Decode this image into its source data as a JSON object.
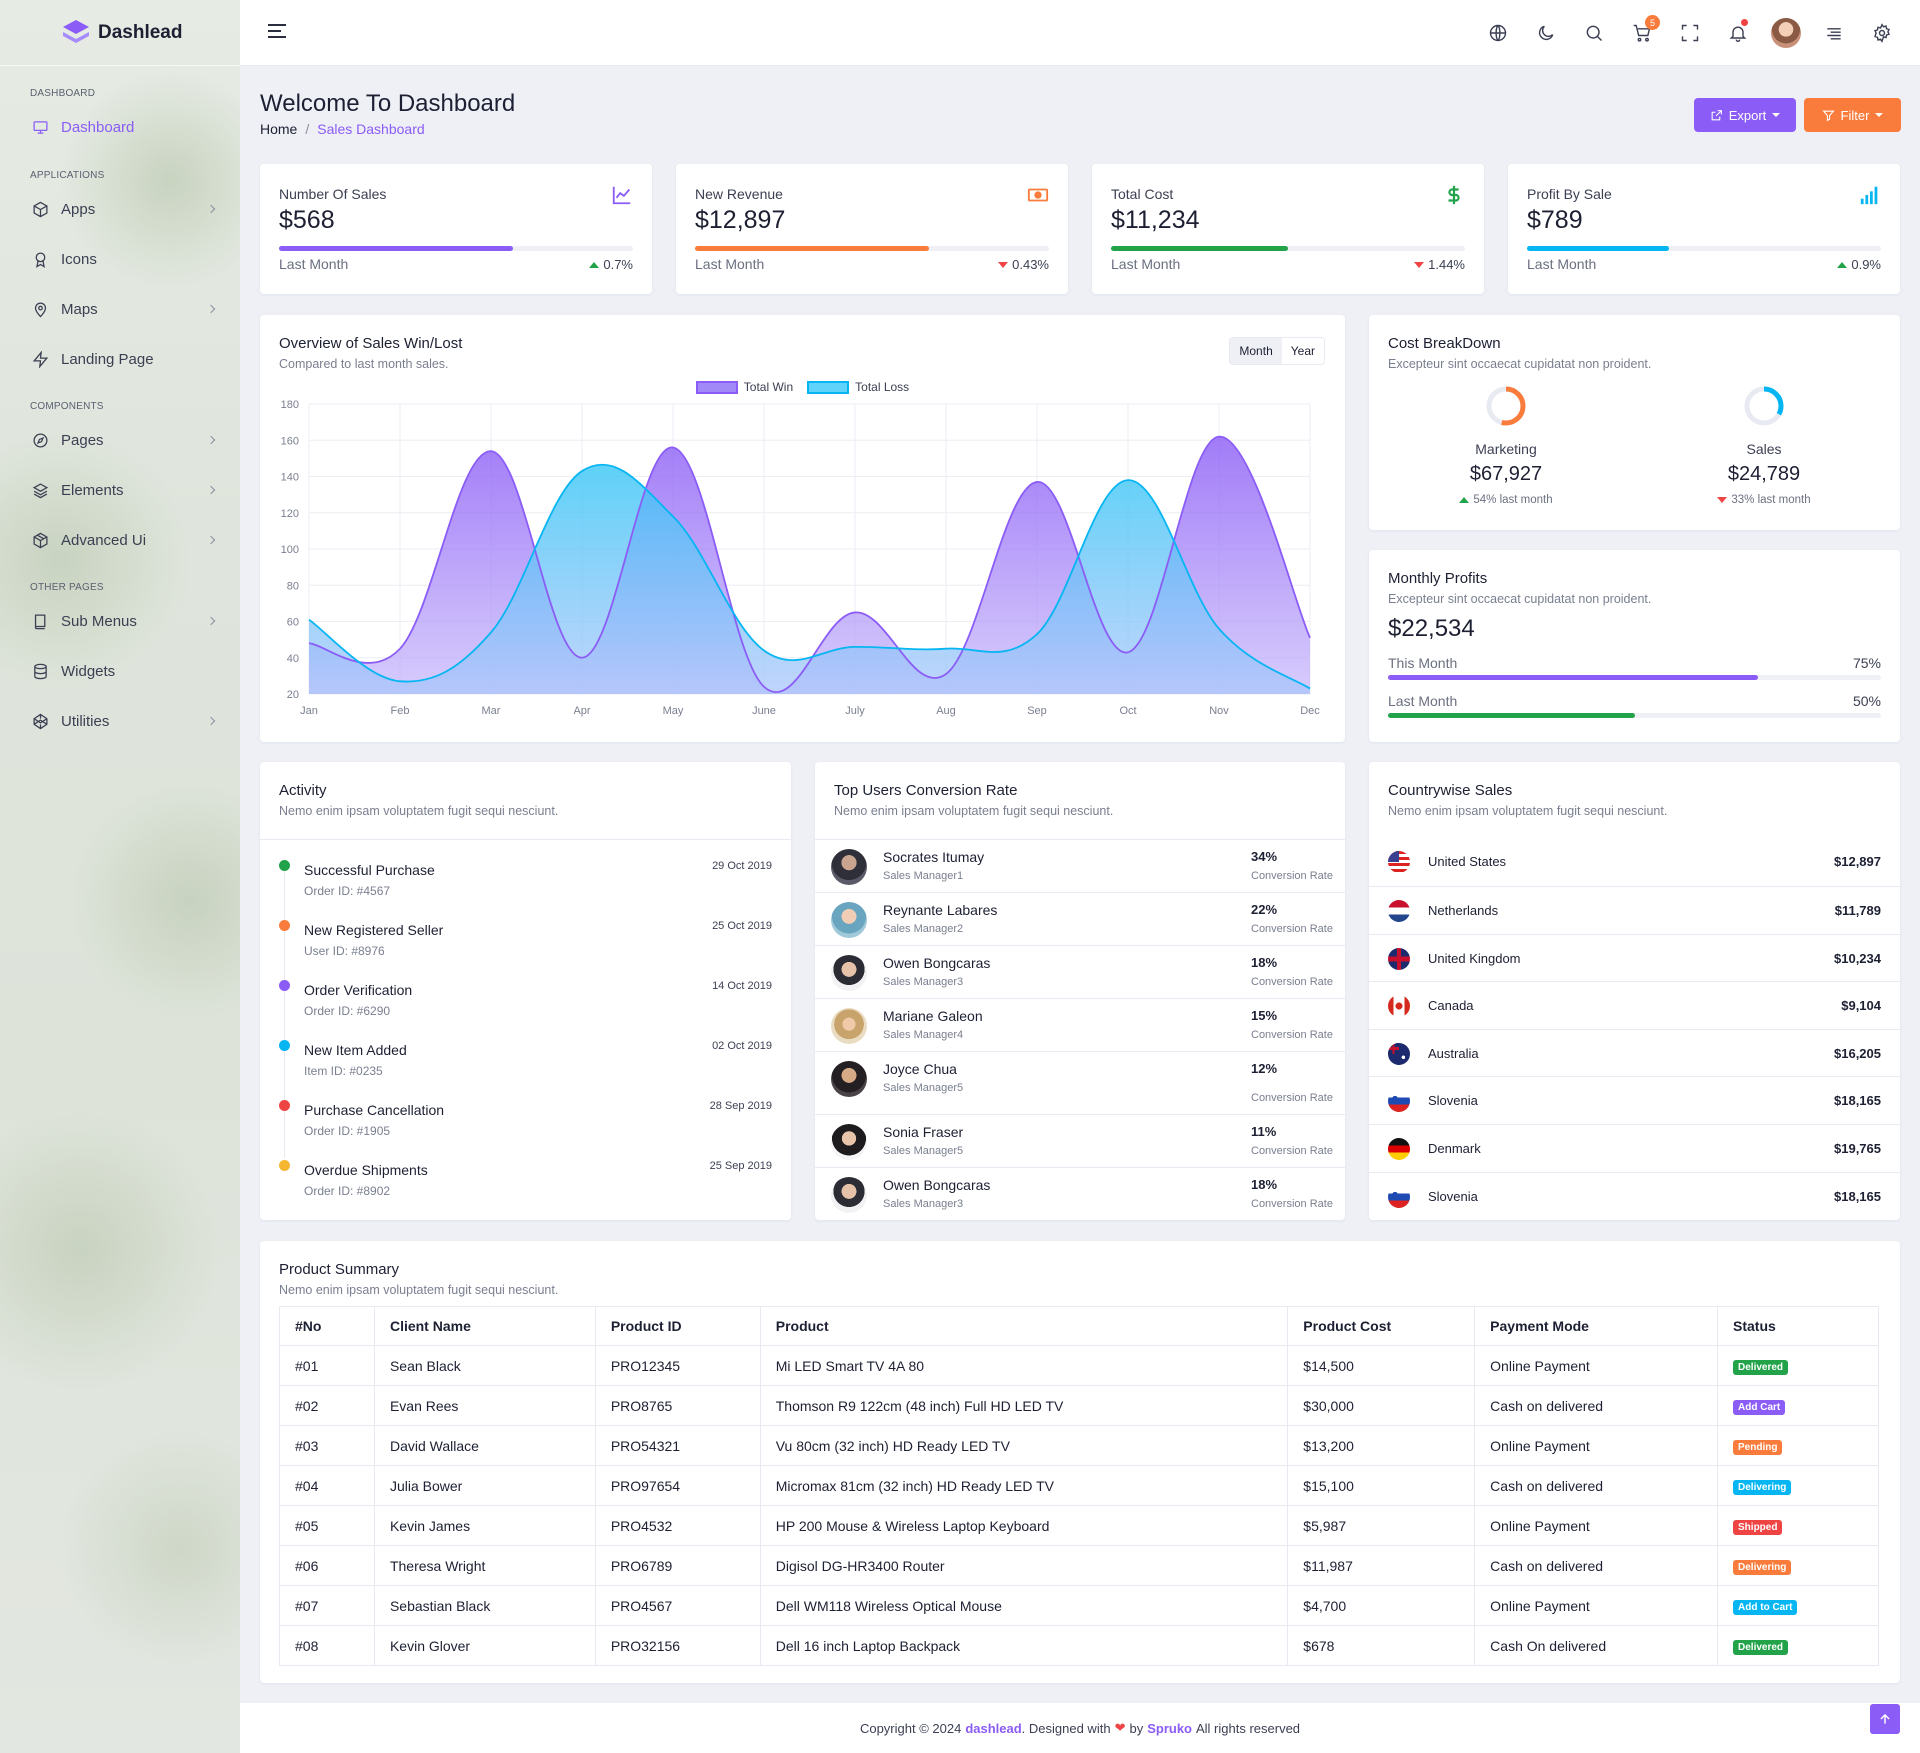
{
  "brand": {
    "name": "Dashlead"
  },
  "sidebar": {
    "categories": [
      "DASHBOARD",
      "APPLICATIONS",
      "COMPONENTS",
      "OTHER PAGES"
    ],
    "items": [
      {
        "label": "Dashboard",
        "icon": "monitor-icon"
      },
      {
        "label": "Apps",
        "icon": "cube-icon"
      },
      {
        "label": "Icons",
        "icon": "award-icon"
      },
      {
        "label": "Maps",
        "icon": "map-pin-icon"
      },
      {
        "label": "Landing Page",
        "icon": "zap-icon"
      },
      {
        "label": "Pages",
        "icon": "compass-icon"
      },
      {
        "label": "Elements",
        "icon": "layers-icon"
      },
      {
        "label": "Advanced Ui",
        "icon": "box-icon"
      },
      {
        "label": "Sub Menus",
        "icon": "book-icon"
      },
      {
        "label": "Widgets",
        "icon": "database-icon"
      },
      {
        "label": "Utilities",
        "icon": "codepen-icon"
      }
    ]
  },
  "header": {
    "cart_count": "5"
  },
  "page": {
    "title": "Welcome To Dashboard",
    "breadcrumb": [
      "Home",
      "Sales Dashboard"
    ],
    "export_label": "Export",
    "filter_label": "Filter"
  },
  "stats": [
    {
      "label": "Number Of Sales",
      "value": "$568",
      "sub": "Last Month",
      "change": "0.7%",
      "dir": "up",
      "progress": 0.66,
      "color": "#8b5cf6",
      "icon": "line-chart-icon"
    },
    {
      "label": "New Revenue",
      "value": "$12,897",
      "sub": "Last Month",
      "change": "0.43%",
      "dir": "down",
      "progress": 0.66,
      "color": "#f97c3c",
      "icon": "money-icon"
    },
    {
      "label": "Total Cost",
      "value": "$11,234",
      "sub": "Last Month",
      "change": "1.44%",
      "dir": "down",
      "progress": 0.5,
      "color": "#22a34a",
      "icon": "dollar-icon"
    },
    {
      "label": "Profit By Sale",
      "value": "$789",
      "sub": "Last Month",
      "change": "0.9%",
      "dir": "up",
      "progress": 0.4,
      "color": "#06b6f2",
      "icon": "signal-icon"
    }
  ],
  "sales_chart": {
    "title": "Overview of Sales Win/Lost",
    "subtitle": "Compared to last month sales.",
    "toggle": [
      "Month",
      "Year"
    ]
  },
  "chart_data": {
    "type": "area",
    "categories": [
      "Jan",
      "Feb",
      "Mar",
      "Apr",
      "May",
      "June",
      "July",
      "Aug",
      "Sep",
      "Oct",
      "Nov",
      "Dec"
    ],
    "series": [
      {
        "name": "Total Win",
        "values": [
          48,
          45,
          154,
          40,
          156,
          24,
          65,
          31,
          137,
          43,
          162,
          51
        ],
        "color": "#8b5cf6"
      },
      {
        "name": "Total Loss",
        "values": [
          61,
          27,
          54,
          143,
          118,
          44,
          46,
          45,
          53,
          138,
          56,
          23
        ],
        "color": "#06b6f2"
      }
    ],
    "ylim": [
      20,
      180
    ],
    "yticks": [
      20,
      40,
      60,
      80,
      100,
      120,
      140,
      160,
      180
    ],
    "grid": true,
    "legend": "top"
  },
  "cost": {
    "title": "Cost BreakDown",
    "subtitle": "Excepteur sint occaecat cupidatat non proident.",
    "items": [
      {
        "label": "Marketing",
        "value": "$67,927",
        "change": "54% last month",
        "dir": "up",
        "fraction": 0.54,
        "color": "#f97c3c"
      },
      {
        "label": "Sales",
        "value": "$24,789",
        "change": "33% last month",
        "dir": "down",
        "fraction": 0.33,
        "color": "#06b6f2"
      }
    ]
  },
  "profits": {
    "title": "Monthly Profits",
    "subtitle": "Excepteur sint occaecat cupidatat non proident.",
    "value": "$22,534",
    "rows": [
      {
        "label": "This Month",
        "pct": "75%",
        "fraction": 0.75,
        "color": "#8b5cf6"
      },
      {
        "label": "Last Month",
        "pct": "50%",
        "fraction": 0.5,
        "color": "#22a34a"
      }
    ]
  },
  "activity": {
    "title": "Activity",
    "subtitle": "Nemo enim ipsam voluptatem fugit sequi nesciunt.",
    "items": [
      {
        "title": "Successful Purchase",
        "sub": "Order ID: #4567",
        "date": "29 Oct 2019",
        "color": "#22a34a"
      },
      {
        "title": "New Registered Seller",
        "sub": "User ID: #8976",
        "date": "25 Oct 2019",
        "color": "#f97c3c"
      },
      {
        "title": "Order Verification",
        "sub": "Order ID: #6290",
        "date": "14 Oct 2019",
        "color": "#8b5cf6"
      },
      {
        "title": "New Item Added",
        "sub": "Item ID: #0235",
        "date": "02 Oct 2019",
        "color": "#06b6f2"
      },
      {
        "title": "Purchase Cancellation",
        "sub": "Order ID: #1905",
        "date": "28 Sep 2019",
        "color": "#ef4444"
      },
      {
        "title": "Overdue Shipments",
        "sub": "Order ID: #8902",
        "date": "25 Sep 2019",
        "color": "#f5b731"
      }
    ]
  },
  "users": {
    "title": "Top Users Conversion Rate",
    "subtitle": "Nemo enim ipsam voluptatem fugit sequi nesciunt.",
    "items": [
      {
        "name": "Socrates Itumay",
        "role": "Sales Manager1",
        "pct": "34%",
        "label": "Conversion Rate"
      },
      {
        "name": "Reynante Labares",
        "role": "Sales Manager2",
        "pct": "22%",
        "label": "Conversion Rate"
      },
      {
        "name": "Owen Bongcaras",
        "role": "Sales Manager3",
        "pct": "18%",
        "label": "Conversion Rate"
      },
      {
        "name": "Mariane Galeon",
        "role": "Sales Manager4",
        "pct": "15%",
        "label": "Conversion Rate"
      },
      {
        "name": "Joyce Chua",
        "role": "Sales Manager5",
        "pct": "12%",
        "label": "Conversion Rate"
      },
      {
        "name": "Sonia Fraser",
        "role": "Sales Manager5",
        "pct": "11%",
        "label": "Conversion Rate"
      },
      {
        "name": "Owen Bongcaras",
        "role": "Sales Manager3",
        "pct": "18%",
        "label": "Conversion Rate"
      }
    ]
  },
  "countries": {
    "title": "Countrywise Sales",
    "subtitle": "Nemo enim ipsam voluptatem fugit sequi nesciunt.",
    "items": [
      {
        "name": "United States",
        "value": "$12,897",
        "flag": "us-flag-icon"
      },
      {
        "name": "Netherlands",
        "value": "$11,789",
        "flag": "nl-flag-icon"
      },
      {
        "name": "United Kingdom",
        "value": "$10,234",
        "flag": "uk-flag-icon"
      },
      {
        "name": "Canada",
        "value": "$9,104",
        "flag": "ca-flag-icon"
      },
      {
        "name": "Australia",
        "value": "$16,205",
        "flag": "au-flag-icon"
      },
      {
        "name": "Slovenia",
        "value": "$18,165",
        "flag": "si-flag-icon"
      },
      {
        "name": "Denmark",
        "value": "$19,765",
        "flag": "de-flag-icon"
      },
      {
        "name": "Slovenia",
        "value": "$18,165",
        "flag": "si-flag-icon"
      }
    ]
  },
  "products": {
    "title": "Product Summary",
    "subtitle": "Nemo enim ipsam voluptatem fugit sequi nesciunt.",
    "headers": [
      "#No",
      "Client Name",
      "Product ID",
      "Product",
      "Product Cost",
      "Payment Mode",
      "Status"
    ],
    "rows": [
      {
        "no": "#01",
        "client": "Sean Black",
        "pid": "PRO12345",
        "product": "Mi LED Smart TV 4A 80",
        "cost": "$14,500",
        "mode": "Online Payment",
        "status": "Delivered",
        "color": "#22a34a"
      },
      {
        "no": "#02",
        "client": "Evan Rees",
        "pid": "PRO8765",
        "product": "Thomson R9 122cm (48 inch) Full HD LED TV",
        "cost": "$30,000",
        "mode": "Cash on delivered",
        "status": "Add Cart",
        "color": "#8b5cf6"
      },
      {
        "no": "#03",
        "client": "David Wallace",
        "pid": "PRO54321",
        "product": "Vu 80cm (32 inch) HD Ready LED TV",
        "cost": "$13,200",
        "mode": "Online Payment",
        "status": "Pending",
        "color": "#f97c3c"
      },
      {
        "no": "#04",
        "client": "Julia Bower",
        "pid": "PRO97654",
        "product": "Micromax 81cm (32 inch) HD Ready LED TV",
        "cost": "$15,100",
        "mode": "Cash on delivered",
        "status": "Delivering",
        "color": "#06b6f2"
      },
      {
        "no": "#05",
        "client": "Kevin James",
        "pid": "PRO4532",
        "product": "HP 200 Mouse &amp; Wireless Laptop Keyboard",
        "cost": "$5,987",
        "mode": "Online Payment",
        "status": "Shipped",
        "color": "#ef4444"
      },
      {
        "no": "#06",
        "client": "Theresa Wright",
        "pid": "PRO6789",
        "product": "Digisol DG-HR3400 Router",
        "cost": "$11,987",
        "mode": "Cash on delivered",
        "status": "Delivering",
        "color": "#f97c3c"
      },
      {
        "no": "#07",
        "client": "Sebastian Black",
        "pid": "PRO4567",
        "product": "Dell WM118 Wireless Optical Mouse",
        "cost": "$4,700",
        "mode": "Online Payment",
        "status": "Add to Cart",
        "color": "#06b6f2"
      },
      {
        "no": "#08",
        "client": "Kevin Glover",
        "pid": "PRO32156",
        "product": "Dell 16 inch Laptop Backpack",
        "cost": "$678",
        "mode": "Cash On delivered",
        "status": "Delivered",
        "color": "#22a34a"
      }
    ]
  },
  "footer": {
    "pre": "Copyright © 2024",
    "brand": "dashlead",
    "mid": ". Designed with",
    "by": "by",
    "company": "Spruko",
    "post": "All rights reserved"
  }
}
